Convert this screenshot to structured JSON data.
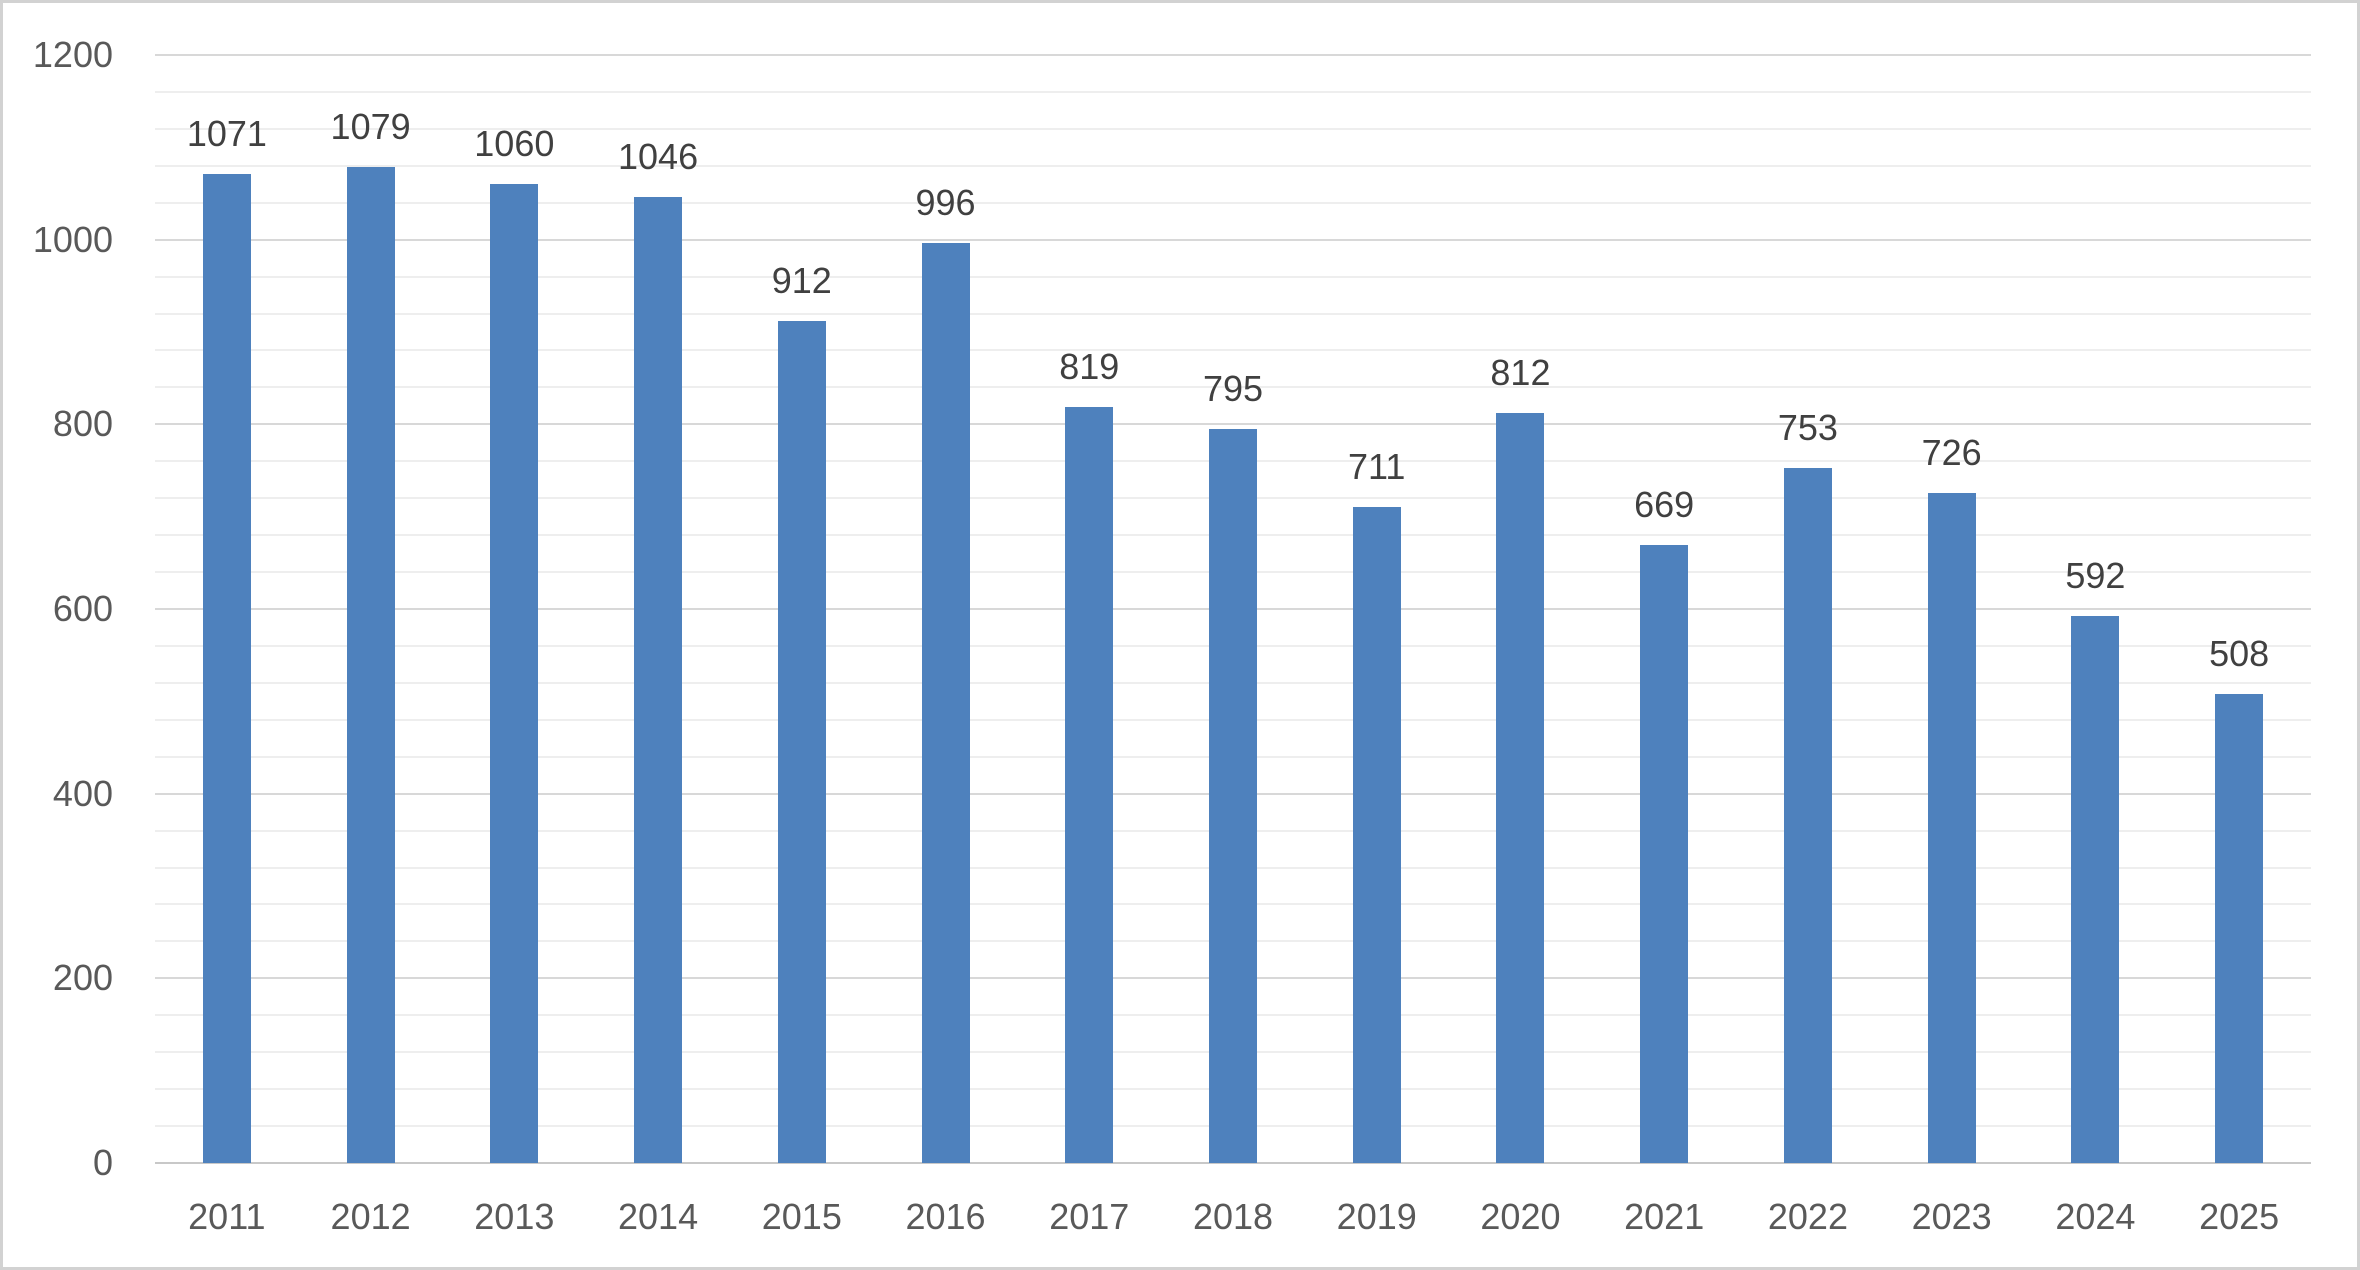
{
  "chart_data": {
    "type": "bar",
    "title": "",
    "xlabel": "",
    "ylabel": "",
    "categories": [
      "2011",
      "2012",
      "2013",
      "2014",
      "2015",
      "2016",
      "2017",
      "2018",
      "2019",
      "2020",
      "2021",
      "2022",
      "2023",
      "2024",
      "2025"
    ],
    "values": [
      1071,
      1079,
      1060,
      1046,
      912,
      996,
      819,
      795,
      711,
      812,
      669,
      753,
      726,
      592,
      508
    ],
    "ylim": [
      0,
      1200
    ],
    "y_major_step": 200,
    "y_minor_step": 40,
    "y_tick_labels": [
      "0",
      "200",
      "400",
      "600",
      "800",
      "1000",
      "1200"
    ],
    "grid": "horizontal major and minor gridlines",
    "legend": "none",
    "data_labels": "value shown above each bar",
    "bar_color": "#4e81bd"
  },
  "colors": {
    "background": "#ffffff",
    "canvas_border": "#d2d2d2",
    "bar": "#4e81bd",
    "gridline_major": "#d8d8d8",
    "gridline_minor": "#eeeeee",
    "axis_line": "#c8c8c8",
    "value_label_text": "#404040",
    "axis_tick_text": "#595959"
  }
}
